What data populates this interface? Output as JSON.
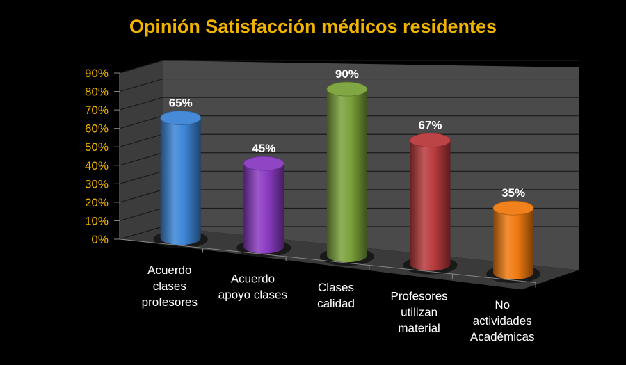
{
  "chart_data": {
    "type": "bar",
    "title": "Opinión Satisfacción médicos residentes",
    "categories": [
      [
        "Acuerdo",
        "clases",
        "profesores"
      ],
      [
        "Acuerdo",
        "apoyo clases"
      ],
      [
        "Clases",
        "calidad"
      ],
      [
        "Profesores",
        "utilizan",
        "material"
      ],
      [
        "No",
        "actividades",
        "Académicas"
      ]
    ],
    "values": [
      65,
      45,
      90,
      67,
      35
    ],
    "data_labels": [
      "65%",
      "45%",
      "90%",
      "67%",
      "35%"
    ],
    "ylim": [
      0,
      90
    ],
    "yticks": [
      "0%",
      "10%",
      "20%",
      "30%",
      "40%",
      "50%",
      "60%",
      "70%",
      "80%",
      "90%"
    ],
    "grid": true,
    "legend": "none",
    "three_d": true
  },
  "colors": {
    "title": "#f0b400",
    "tick": "#f0b400",
    "bars": [
      "#3d85d6",
      "#8a3bc2",
      "#7aa13a",
      "#b83a3c",
      "#f07a10"
    ],
    "walls": "#4a4a4a",
    "floor": "#3a3a3a",
    "grid": "#1a1a1a"
  }
}
